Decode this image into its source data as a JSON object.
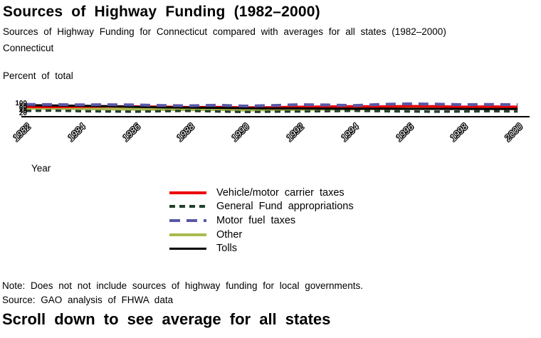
{
  "page": {
    "title": "Sources of Highway Funding (1982–2000)",
    "subtitle": "Sources of Highway Funding for Connecticut compared with averages for all states (1982–2000)",
    "region_label": "Connecticut",
    "y_axis_title": "Percent of total",
    "x_axis_title": "Year",
    "note": "Note: Does not not include sources of highway funding for local governments.",
    "source": "Source: GAO analysis of FHWA data",
    "footer_headline": "Scroll down to see average for all states"
  },
  "chart_data": {
    "type": "line",
    "title": "Sources of Highway Funding (1982–2000)",
    "xlabel": "Year",
    "ylabel": "Percent of total",
    "ylim": [
      0,
      100
    ],
    "yticks": [
      100,
      80,
      60,
      40,
      20
    ],
    "xticks": [
      1982,
      1984,
      1986,
      1988,
      1990,
      1992,
      1994,
      1996,
      1998,
      2000
    ],
    "x": [
      1982,
      1983,
      1984,
      1985,
      1986,
      1987,
      1988,
      1989,
      1990,
      1991,
      1992,
      1993,
      1994,
      1995,
      1996,
      1997,
      1998,
      1999,
      2000
    ],
    "grid": false,
    "legend_position": "bottom-center",
    "values_note": "approximate; plot is extremely vertically compressed in source image",
    "series": [
      {
        "name": "Vehicle/motor carrier taxes",
        "color": "#ee0000",
        "dash": "solid",
        "values": [
          70,
          69,
          71,
          73,
          72,
          70,
          67,
          68,
          65,
          66,
          69,
          71,
          73,
          72,
          75,
          73,
          70,
          72,
          70
        ]
      },
      {
        "name": "General Fund appropriations",
        "color": "#23402b",
        "dash": "dashed-short",
        "values": [
          40,
          42,
          38,
          36,
          34,
          38,
          40,
          36,
          32,
          34,
          36,
          38,
          40,
          38,
          36,
          34,
          36,
          38,
          36
        ]
      },
      {
        "name": "Motor fuel taxes",
        "color": "#5a58a8",
        "dash": "dashed-long",
        "values": [
          88,
          87,
          85,
          86,
          84,
          80,
          78,
          82,
          76,
          80,
          86,
          84,
          80,
          88,
          92,
          90,
          86,
          88,
          86
        ]
      },
      {
        "name": "Other",
        "color": "#a9bb4e",
        "dash": "solid",
        "values": [
          60,
          58,
          56,
          54,
          52,
          50,
          48,
          50,
          46,
          48,
          50,
          52,
          54,
          56,
          58,
          60,
          62,
          58,
          56
        ]
      },
      {
        "name": "Tolls",
        "color": "#000000",
        "dash": "solid",
        "values": [
          82,
          80,
          78,
          74,
          70,
          66,
          64,
          62,
          60,
          58,
          58,
          57,
          56,
          56,
          55,
          55,
          54,
          54,
          54
        ]
      }
    ]
  }
}
